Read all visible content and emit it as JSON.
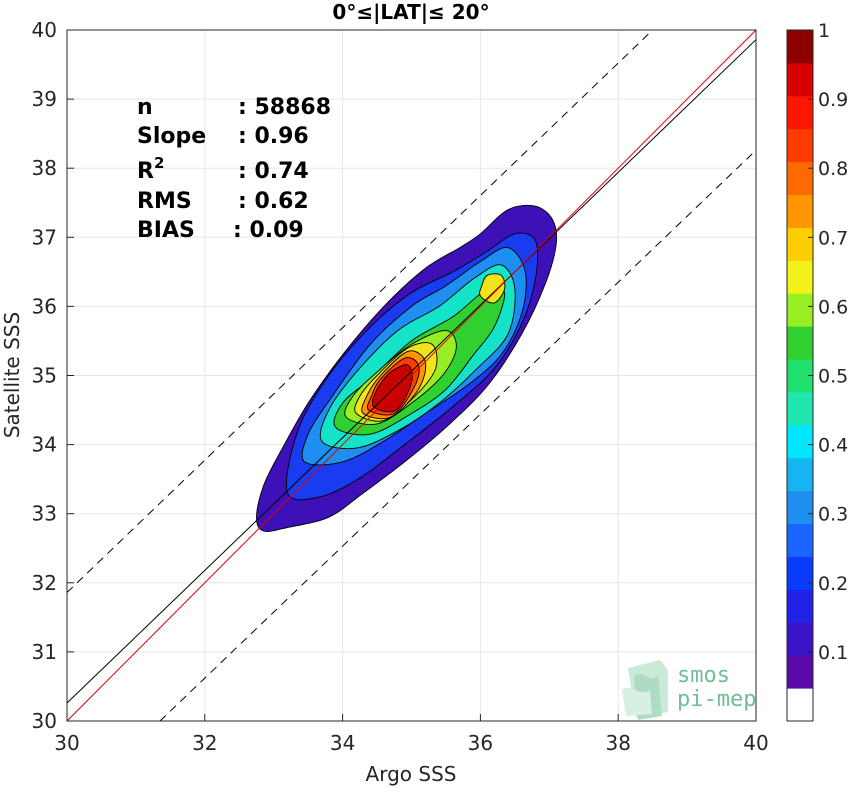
{
  "chart_data": {
    "type": "contour",
    "title": "0°≤|LAT|≤ 20°",
    "xlabel": "Argo SSS",
    "ylabel": "Satellite SSS",
    "xlim": [
      30,
      40
    ],
    "ylim": [
      30,
      40
    ],
    "xticks": [
      30,
      32,
      34,
      36,
      38,
      40
    ],
    "yticks": [
      30,
      31,
      32,
      33,
      34,
      35,
      36,
      37,
      38,
      39,
      40
    ],
    "grid": true,
    "stats": {
      "n_label": "n",
      "n_value": ": 58868",
      "slope_label": "Slope",
      "slope_value": ": 0.96",
      "r2_label": "R",
      "r2_sup": "2",
      "r2_value": ": 0.74",
      "rms_label": "RMS",
      "rms_value": ": 0.62",
      "bias_label": "BIAS",
      "bias_value": ": 0.09"
    },
    "lines": {
      "identity": {
        "color": "#e00000",
        "points": [
          [
            30,
            30
          ],
          [
            40,
            40
          ]
        ]
      },
      "regression": {
        "color": "#000000",
        "points": [
          [
            30,
            30.26
          ],
          [
            40,
            39.86
          ]
        ]
      },
      "upper_bound": {
        "style": "dashed",
        "points": [
          [
            30,
            31.86
          ],
          [
            38.5,
            40
          ]
        ]
      },
      "lower_bound": {
        "style": "dashed",
        "points": [
          [
            31.35,
            30
          ],
          [
            40,
            38.26
          ]
        ]
      }
    },
    "density_contours": [
      {
        "level": 0.05,
        "color": "#3d10b8",
        "points": [
          [
            32.75,
            32.95
          ],
          [
            32.85,
            32.75
          ],
          [
            33.2,
            32.8
          ],
          [
            33.8,
            32.95
          ],
          [
            34.3,
            33.3
          ],
          [
            34.9,
            33.75
          ],
          [
            35.5,
            34.25
          ],
          [
            36.1,
            34.85
          ],
          [
            36.6,
            35.6
          ],
          [
            36.95,
            36.35
          ],
          [
            37.1,
            36.9
          ],
          [
            37.05,
            37.25
          ],
          [
            36.8,
            37.45
          ],
          [
            36.4,
            37.4
          ],
          [
            36.0,
            37.05
          ],
          [
            35.7,
            36.85
          ],
          [
            35.2,
            36.55
          ],
          [
            34.6,
            36.0
          ],
          [
            34.0,
            35.3
          ],
          [
            33.5,
            34.6
          ],
          [
            33.1,
            33.9
          ],
          [
            32.85,
            33.4
          ]
        ]
      },
      {
        "level": 0.15,
        "color": "#1a3cf0",
        "points": [
          [
            33.2,
            33.3
          ],
          [
            33.7,
            33.25
          ],
          [
            34.3,
            33.55
          ],
          [
            34.9,
            34.0
          ],
          [
            35.6,
            34.55
          ],
          [
            36.2,
            35.1
          ],
          [
            36.6,
            35.75
          ],
          [
            36.8,
            36.4
          ],
          [
            36.8,
            36.95
          ],
          [
            36.5,
            37.05
          ],
          [
            36.1,
            36.8
          ],
          [
            35.6,
            36.5
          ],
          [
            35.0,
            36.2
          ],
          [
            34.4,
            35.7
          ],
          [
            33.8,
            35.0
          ],
          [
            33.35,
            34.2
          ]
        ]
      },
      {
        "level": 0.25,
        "color": "#1e8ef0",
        "points": [
          [
            33.45,
            33.75
          ],
          [
            34.0,
            33.75
          ],
          [
            34.6,
            34.05
          ],
          [
            35.2,
            34.45
          ],
          [
            35.8,
            34.85
          ],
          [
            36.3,
            35.3
          ],
          [
            36.6,
            35.9
          ],
          [
            36.65,
            36.5
          ],
          [
            36.4,
            36.85
          ],
          [
            36.0,
            36.65
          ],
          [
            35.5,
            36.3
          ],
          [
            35.0,
            36.0
          ],
          [
            34.4,
            35.45
          ],
          [
            33.85,
            34.7
          ],
          [
            33.5,
            34.15
          ]
        ]
      },
      {
        "level": 0.35,
        "color": "#15e3c7",
        "points": [
          [
            33.7,
            34.05
          ],
          [
            34.2,
            33.95
          ],
          [
            34.8,
            34.2
          ],
          [
            35.4,
            34.6
          ],
          [
            35.95,
            35.1
          ],
          [
            36.4,
            35.6
          ],
          [
            36.5,
            36.25
          ],
          [
            36.3,
            36.6
          ],
          [
            35.9,
            36.4
          ],
          [
            35.4,
            36.0
          ],
          [
            34.8,
            35.65
          ],
          [
            34.2,
            35.05
          ],
          [
            33.8,
            34.5
          ]
        ]
      },
      {
        "level": 0.45,
        "color": "#30d030",
        "points": [
          [
            33.9,
            34.25
          ],
          [
            34.4,
            34.15
          ],
          [
            35.0,
            34.45
          ],
          [
            35.5,
            34.8
          ],
          [
            35.9,
            35.3
          ],
          [
            36.2,
            35.7
          ],
          [
            36.35,
            36.2
          ],
          [
            36.1,
            36.25
          ],
          [
            35.6,
            35.85
          ],
          [
            35.0,
            35.5
          ],
          [
            34.4,
            34.95
          ],
          [
            34.0,
            34.6
          ]
        ]
      },
      {
        "level": 0.55,
        "color": "#98ee22",
        "points": [
          [
            34.05,
            34.4
          ],
          [
            34.5,
            34.3
          ],
          [
            35.0,
            34.6
          ],
          [
            35.45,
            35.0
          ],
          [
            35.65,
            35.4
          ],
          [
            35.5,
            35.65
          ],
          [
            35.0,
            35.45
          ],
          [
            34.5,
            35.05
          ],
          [
            34.15,
            34.7
          ]
        ]
      },
      {
        "level": 0.65,
        "color": "#f2e31a",
        "points": [
          [
            34.2,
            34.45
          ],
          [
            34.6,
            34.35
          ],
          [
            35.05,
            34.7
          ],
          [
            35.35,
            35.1
          ],
          [
            35.3,
            35.45
          ],
          [
            34.95,
            35.4
          ],
          [
            34.5,
            35.0
          ],
          [
            34.25,
            34.7
          ]
        ]
      },
      {
        "level": 0.75,
        "color": "#ff9500",
        "points": [
          [
            34.3,
            34.45
          ],
          [
            34.7,
            34.4
          ],
          [
            35.1,
            34.8
          ],
          [
            35.2,
            35.2
          ],
          [
            34.95,
            35.35
          ],
          [
            34.55,
            35.0
          ],
          [
            34.35,
            34.7
          ]
        ]
      },
      {
        "level": 0.85,
        "color": "#ff3c00",
        "points": [
          [
            34.38,
            34.5
          ],
          [
            34.75,
            34.45
          ],
          [
            35.05,
            34.85
          ],
          [
            35.1,
            35.15
          ],
          [
            34.9,
            35.25
          ],
          [
            34.55,
            34.95
          ],
          [
            34.42,
            34.7
          ]
        ]
      },
      {
        "level": 0.95,
        "color": "#c80000",
        "points": [
          [
            34.45,
            34.55
          ],
          [
            34.78,
            34.5
          ],
          [
            35.0,
            34.9
          ],
          [
            34.95,
            35.15
          ],
          [
            34.7,
            35.05
          ],
          [
            34.5,
            34.8
          ]
        ]
      },
      {
        "level": 0.65,
        "color": "#f2e31a",
        "points": [
          [
            36.0,
            36.15
          ],
          [
            36.2,
            36.05
          ],
          [
            36.35,
            36.25
          ],
          [
            36.3,
            36.45
          ],
          [
            36.1,
            36.45
          ],
          [
            36.02,
            36.3
          ]
        ]
      }
    ],
    "colorbar": {
      "ticks": [
        "0.1",
        "0.2",
        "0.3",
        "0.4",
        "0.5",
        "0.6",
        "0.7",
        "0.8",
        "0.9",
        "1"
      ],
      "colors": [
        "#ffffff",
        "#5a0aa8",
        "#3a14c8",
        "#2222e6",
        "#0a3cff",
        "#1a66ff",
        "#1e8ef0",
        "#16b4f0",
        "#00e6ff",
        "#20e6b0",
        "#22e070",
        "#30d030",
        "#98ee22",
        "#f2f21a",
        "#ffce00",
        "#ff9500",
        "#ff6a00",
        "#ff3c00",
        "#ff1500",
        "#d80000",
        "#8e0000"
      ]
    }
  },
  "logo": {
    "line1": "smos",
    "line2": "pi-mep",
    "color": "#6dbf96"
  }
}
